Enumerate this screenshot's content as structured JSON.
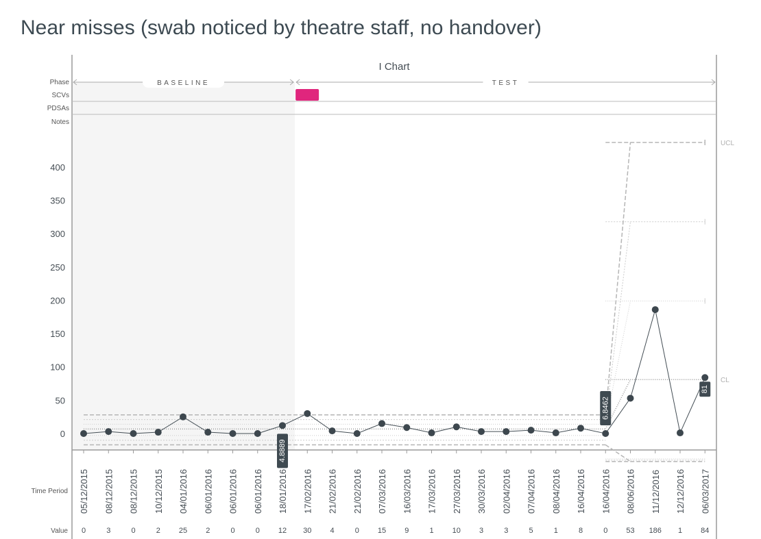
{
  "page": {
    "title": "Near misses (swab noticed by theatre staff, no handover)"
  },
  "chart_data": {
    "type": "line",
    "chart_title": "I Chart",
    "row_labels": {
      "phase": "Phase",
      "scvs": "SCVs",
      "pdsas": "PDSAs",
      "notes": "Notes"
    },
    "phases": [
      {
        "label": "BASELINE",
        "start_index": 0,
        "end_index": 8
      },
      {
        "label": "TEST",
        "start_index": 9,
        "end_index": 23
      }
    ],
    "x_axis_title": "Time Period",
    "value_row_title": "Value",
    "categories": [
      "05/12/2015",
      "08/12/2015",
      "08/12/2015",
      "10/12/2015",
      "04/01/2016",
      "06/01/2016",
      "06/01/2016",
      "06/01/2016",
      "18/01/2016",
      "17/02/2016",
      "21/02/2016",
      "21/02/2016",
      "07/03/2016",
      "16/03/2016",
      "17/03/2016",
      "27/03/2016",
      "30/03/2016",
      "02/04/2016",
      "07/04/2016",
      "08/04/2016",
      "16/04/2016",
      "16/04/2016",
      "08/06/2016",
      "11/12/2016",
      "12/12/2016",
      "06/03/2017"
    ],
    "values": [
      0,
      3,
      0,
      2,
      25,
      2,
      0,
      0,
      12,
      30,
      4,
      0,
      15,
      9,
      1,
      10,
      3,
      3,
      5,
      1,
      8,
      0,
      53,
      186,
      1,
      84
    ],
    "y_ticks": [
      0,
      50,
      100,
      150,
      200,
      250,
      300,
      350,
      400
    ],
    "ylim": [
      -24,
      452
    ],
    "limit_labels": {
      "ucl": "UCL",
      "cl": "CL"
    },
    "segments": [
      {
        "start": 0,
        "end": 21,
        "cl": 6.8,
        "ucl": 28,
        "lcl": -17,
        "sigma2_hi": 21,
        "sigma2_lo": -10,
        "sigma1_hi": 14,
        "sigma1_lo": -3
      },
      {
        "start": 21,
        "end": 25,
        "cl": 81,
        "ucl": 437,
        "lcl": -42,
        "sigma2_hi": 318,
        "sigma2_lo": -40,
        "sigma1_hi": 199,
        "sigma1_lo": -38
      }
    ],
    "annotations": [
      {
        "index": 8,
        "text": "4.8889",
        "position": "below"
      },
      {
        "index": 21,
        "text": "6.8462",
        "position": "above"
      },
      {
        "index": 25,
        "text": "81",
        "position": "at"
      }
    ],
    "scv_marker": {
      "index": 9,
      "color": "#e0267d"
    },
    "colors": {
      "series": "#434d54",
      "point": "#3d474e",
      "limits": "#b5b5b5",
      "baseline_bg": "#f5f5f5",
      "axis": "#9a9a9a"
    }
  }
}
